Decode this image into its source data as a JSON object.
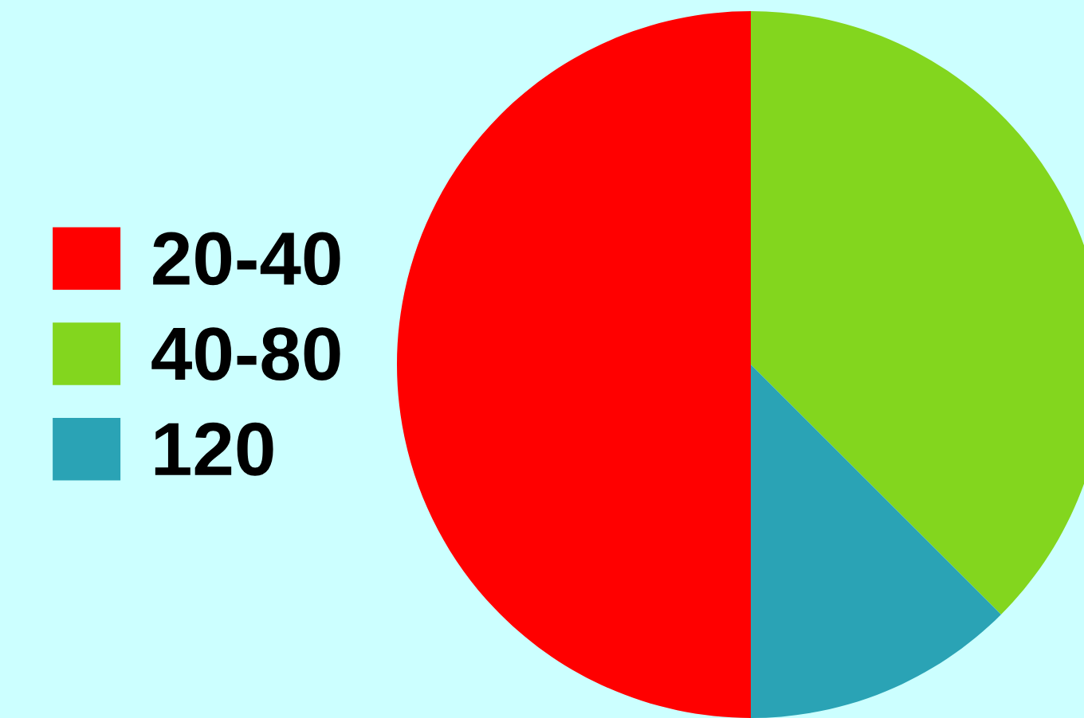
{
  "chart_data": {
    "type": "pie",
    "categories": [
      "20-40",
      "40-80",
      "120"
    ],
    "values": [
      50,
      37.5,
      12.5
    ],
    "colors": [
      "#ff0000",
      "#83d61e",
      "#2aa3b5"
    ],
    "legend": "left"
  }
}
